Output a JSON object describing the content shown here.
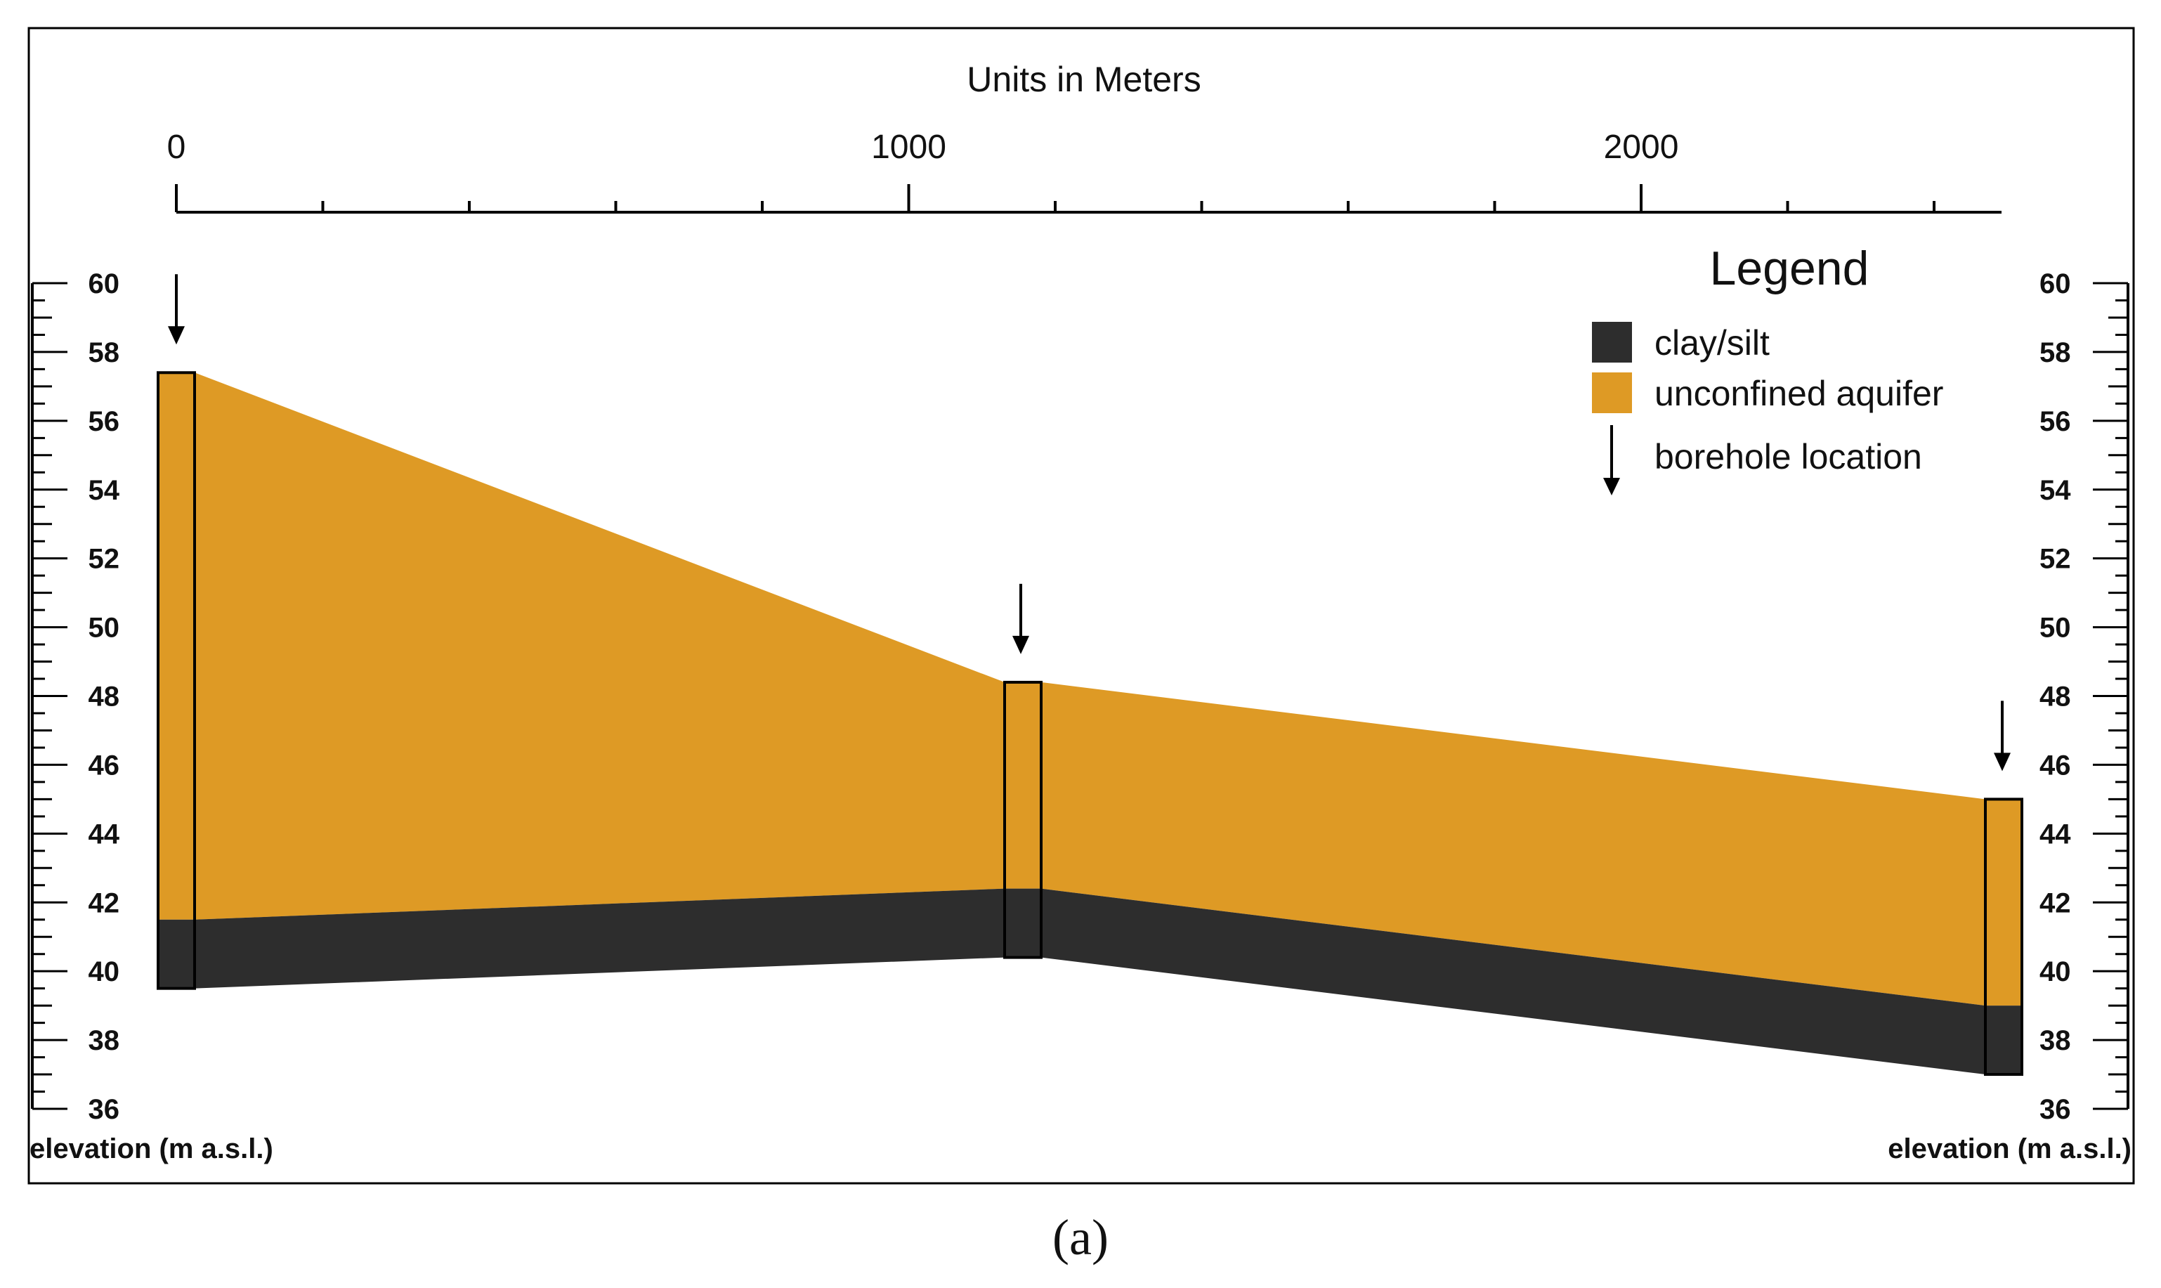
{
  "figure": {
    "caption": "(a)",
    "scale_title": "Units in Meters",
    "scale_labels": [
      "0",
      "1000",
      "2000"
    ],
    "left_axis_label": "elevation (m a.s.l.)",
    "right_axis_label": "elevation (m a.s.l.)",
    "elevation_ticks": [
      "60",
      "58",
      "56",
      "54",
      "52",
      "50",
      "48",
      "46",
      "44",
      "42",
      "40",
      "38",
      "36"
    ]
  },
  "legend": {
    "title": "Legend",
    "items": [
      {
        "label": "clay/silt",
        "color": "#2d2d2d"
      },
      {
        "label": "unconfined aquifer",
        "color": "#de9a25"
      },
      {
        "label": "borehole location",
        "icon": "down-arrow-icon"
      }
    ]
  },
  "boreholes": [
    {
      "distance_m": 0,
      "top_elev": 57.4,
      "aquifer_base": 41.5,
      "clay_base": 39.5
    },
    {
      "distance_m": 1150,
      "top_elev": 48.4,
      "aquifer_base": 42.4,
      "clay_base": 40.4
    },
    {
      "distance_m": 2500,
      "top_elev": 45.0,
      "aquifer_base": 39.0,
      "clay_base": 37.0
    }
  ],
  "colors": {
    "aquifer": "#de9a25",
    "clay": "#2d2d2d",
    "line": "#000000"
  }
}
